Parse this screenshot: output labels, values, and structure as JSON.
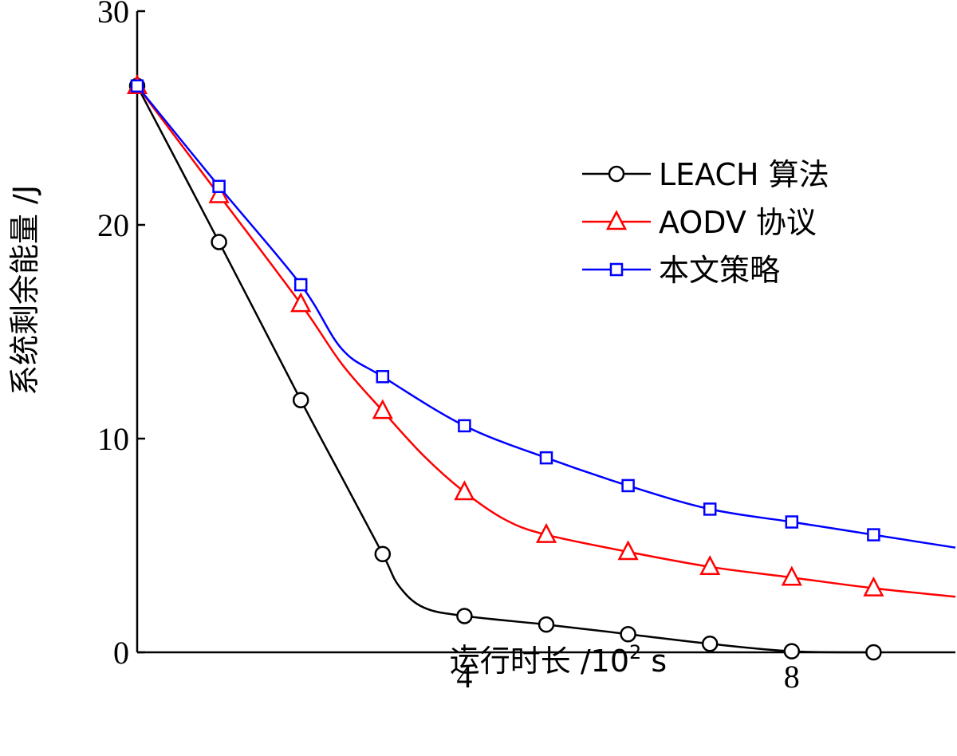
{
  "chart_data": {
    "type": "line",
    "title": "",
    "xlabel": "运行时长 /10",
    "xlabel_superscript": "2",
    "xlabel_unit": " s",
    "ylabel": "系统剩余能量 /J",
    "xlim": [
      0,
      10
    ],
    "ylim": [
      0,
      30
    ],
    "xticks": [
      4,
      8
    ],
    "yticks": [
      0,
      10,
      20,
      30
    ],
    "legend_position": "top-right",
    "series": [
      {
        "name": "LEACH 算法",
        "color": "#000000",
        "marker": "circle",
        "x": [
          0,
          1,
          2,
          3,
          4,
          5,
          6,
          7,
          8,
          9
        ],
        "y": [
          26.5,
          19.2,
          11.8,
          4.6,
          1.7,
          1.3,
          0.85,
          0.4,
          0.05,
          0.0
        ],
        "curve_x": [
          0,
          1,
          2,
          2.5,
          3,
          3.2,
          3.5,
          4,
          5,
          6,
          7,
          8,
          9
        ],
        "curve_y": [
          26.5,
          19.2,
          11.8,
          8.2,
          4.6,
          3.1,
          2.1,
          1.7,
          1.3,
          0.85,
          0.4,
          0.05,
          0.0
        ]
      },
      {
        "name": "AODV 协议",
        "color": "#ff0000",
        "marker": "triangle",
        "x": [
          0,
          1,
          2,
          3,
          4,
          5,
          6,
          7,
          8,
          9
        ],
        "y": [
          26.5,
          21.4,
          16.3,
          11.3,
          7.5,
          5.5,
          4.7,
          4.0,
          3.5,
          3.0
        ],
        "curve_x": [
          0,
          1,
          2,
          2.5,
          3,
          3.5,
          4,
          4.5,
          5,
          6,
          7,
          8,
          9,
          10
        ],
        "curve_y": [
          26.5,
          21.4,
          16.3,
          13.5,
          11.3,
          9.2,
          7.5,
          6.2,
          5.5,
          4.7,
          4.0,
          3.5,
          3.0,
          2.6
        ]
      },
      {
        "name": "本文策略",
        "color": "#0000ff",
        "marker": "square",
        "x": [
          0,
          1,
          2,
          3,
          4,
          5,
          6,
          7,
          8,
          9
        ],
        "y": [
          26.5,
          21.8,
          17.2,
          12.9,
          10.6,
          9.1,
          7.8,
          6.7,
          6.1,
          5.5
        ],
        "curve_x": [
          0,
          1,
          2,
          2.5,
          3,
          4,
          5,
          6,
          7,
          8,
          9,
          10
        ],
        "curve_y": [
          26.5,
          21.8,
          17.2,
          14.2,
          12.9,
          10.6,
          9.1,
          7.8,
          6.7,
          6.1,
          5.5,
          4.9
        ]
      }
    ]
  }
}
